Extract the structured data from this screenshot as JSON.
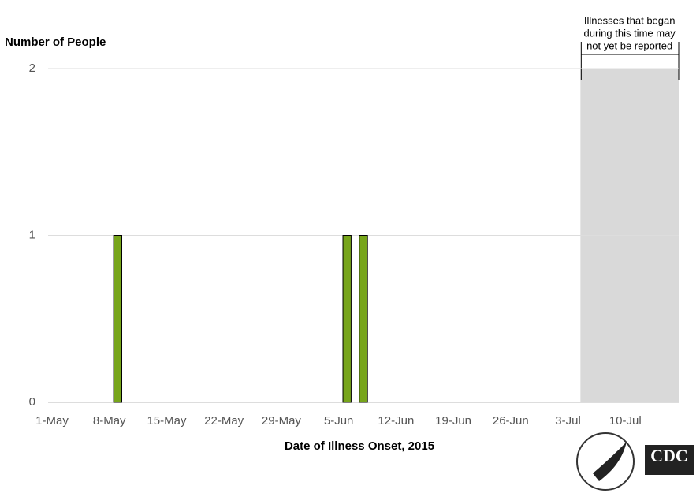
{
  "chart_data": {
    "type": "bar",
    "y_label": "Number of People",
    "x_label": "Date of Illness Onset, 2015",
    "x": [
      "9-May",
      "6-Jun",
      "8-Jun"
    ],
    "values": [
      1,
      1,
      1
    ],
    "color": "#77a51b",
    "xlim": [
      "1-May",
      "17-Jul"
    ],
    "xticks": [
      "1-May",
      "8-May",
      "15-May",
      "22-May",
      "29-May",
      "5-Jun",
      "12-Jun",
      "19-Jun",
      "26-Jun",
      "3-Jul",
      "10-Jul"
    ],
    "ylim": [
      0,
      2
    ],
    "yticks": [
      0,
      1,
      2
    ],
    "grid": true,
    "shaded_from": "5-Jul",
    "shade_color": "#d9d9d9",
    "annotation": [
      "Illnesses that began",
      "during this time may",
      "not yet be reported"
    ],
    "logo_text": "CDC"
  }
}
